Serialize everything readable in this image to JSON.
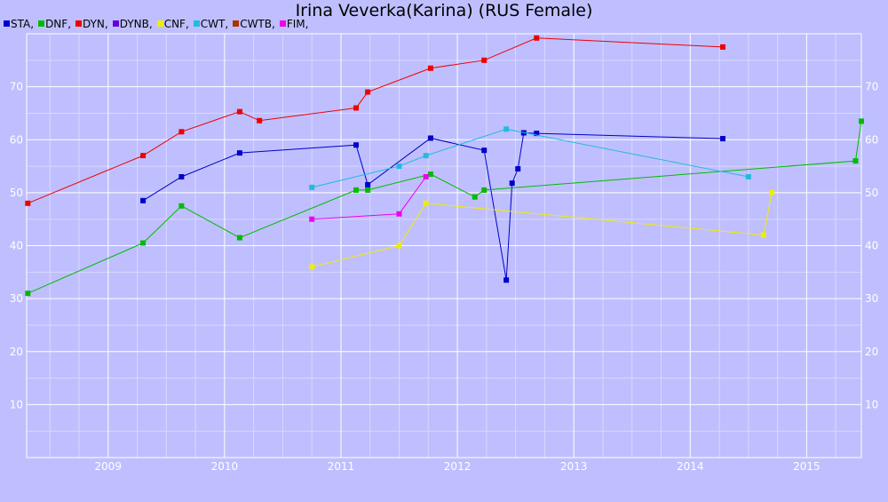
{
  "chart_data": {
    "type": "line",
    "title": "Irina Veverka(Karina) (RUS Female)",
    "xlabel": "",
    "ylabel": "",
    "xlim": [
      2008.3,
      2015.47
    ],
    "ylim": [
      0,
      80
    ],
    "xticks": [
      2009,
      2010,
      2011,
      2012,
      2013,
      2014,
      2015
    ],
    "yticks": [
      10,
      20,
      30,
      40,
      50,
      60,
      70
    ],
    "grid": true,
    "legend_position": "top-left",
    "series": [
      {
        "name": "STA",
        "color": "#0000cc",
        "points": [
          [
            2009.3,
            48.5
          ],
          [
            2009.63,
            53
          ],
          [
            2010.13,
            57.5
          ],
          [
            2011.13,
            59
          ],
          [
            2011.23,
            51.5
          ],
          [
            2011.77,
            60.3
          ],
          [
            2012.23,
            58
          ],
          [
            2012.42,
            33.5
          ],
          [
            2012.47,
            51.8
          ],
          [
            2012.52,
            54.5
          ],
          [
            2012.57,
            61.3
          ],
          [
            2012.68,
            61.2
          ],
          [
            2014.28,
            60.2
          ]
        ]
      },
      {
        "name": "DNF",
        "color": "#00bb00",
        "points": [
          [
            2008.31,
            31
          ],
          [
            2009.3,
            40.5
          ],
          [
            2009.63,
            47.5
          ],
          [
            2010.13,
            41.5
          ],
          [
            2011.13,
            50.5
          ],
          [
            2011.23,
            50.5
          ],
          [
            2011.77,
            53.5
          ],
          [
            2012.15,
            49.2
          ],
          [
            2012.23,
            50.5
          ],
          [
            2015.42,
            56
          ],
          [
            2015.47,
            63.5
          ]
        ]
      },
      {
        "name": "DYN",
        "color": "#ee0000",
        "points": [
          [
            2008.31,
            48
          ],
          [
            2009.3,
            57
          ],
          [
            2009.63,
            61.5
          ],
          [
            2010.13,
            65.3
          ],
          [
            2010.3,
            63.6
          ],
          [
            2011.13,
            66
          ],
          [
            2011.23,
            69
          ],
          [
            2011.77,
            73.5
          ],
          [
            2012.23,
            75
          ],
          [
            2012.68,
            79.2
          ],
          [
            2014.28,
            77.5
          ]
        ]
      },
      {
        "name": "DYNB",
        "color": "#6600dd",
        "points": []
      },
      {
        "name": "CNF",
        "color": "#eeee00",
        "points": [
          [
            2010.75,
            36
          ],
          [
            2011.5,
            40
          ],
          [
            2011.73,
            48
          ],
          [
            2014.63,
            42
          ],
          [
            2014.7,
            50
          ]
        ]
      },
      {
        "name": "CWT",
        "color": "#22bbdd",
        "points": [
          [
            2010.75,
            51
          ],
          [
            2011.5,
            55
          ],
          [
            2011.73,
            57
          ],
          [
            2012.42,
            62
          ],
          [
            2014.5,
            53
          ]
        ]
      },
      {
        "name": "CWTB",
        "color": "#aa3300",
        "points": []
      },
      {
        "name": "FIM",
        "color": "#ee00ee",
        "points": [
          [
            2010.75,
            45
          ],
          [
            2011.5,
            46
          ],
          [
            2011.73,
            53
          ]
        ]
      }
    ]
  }
}
